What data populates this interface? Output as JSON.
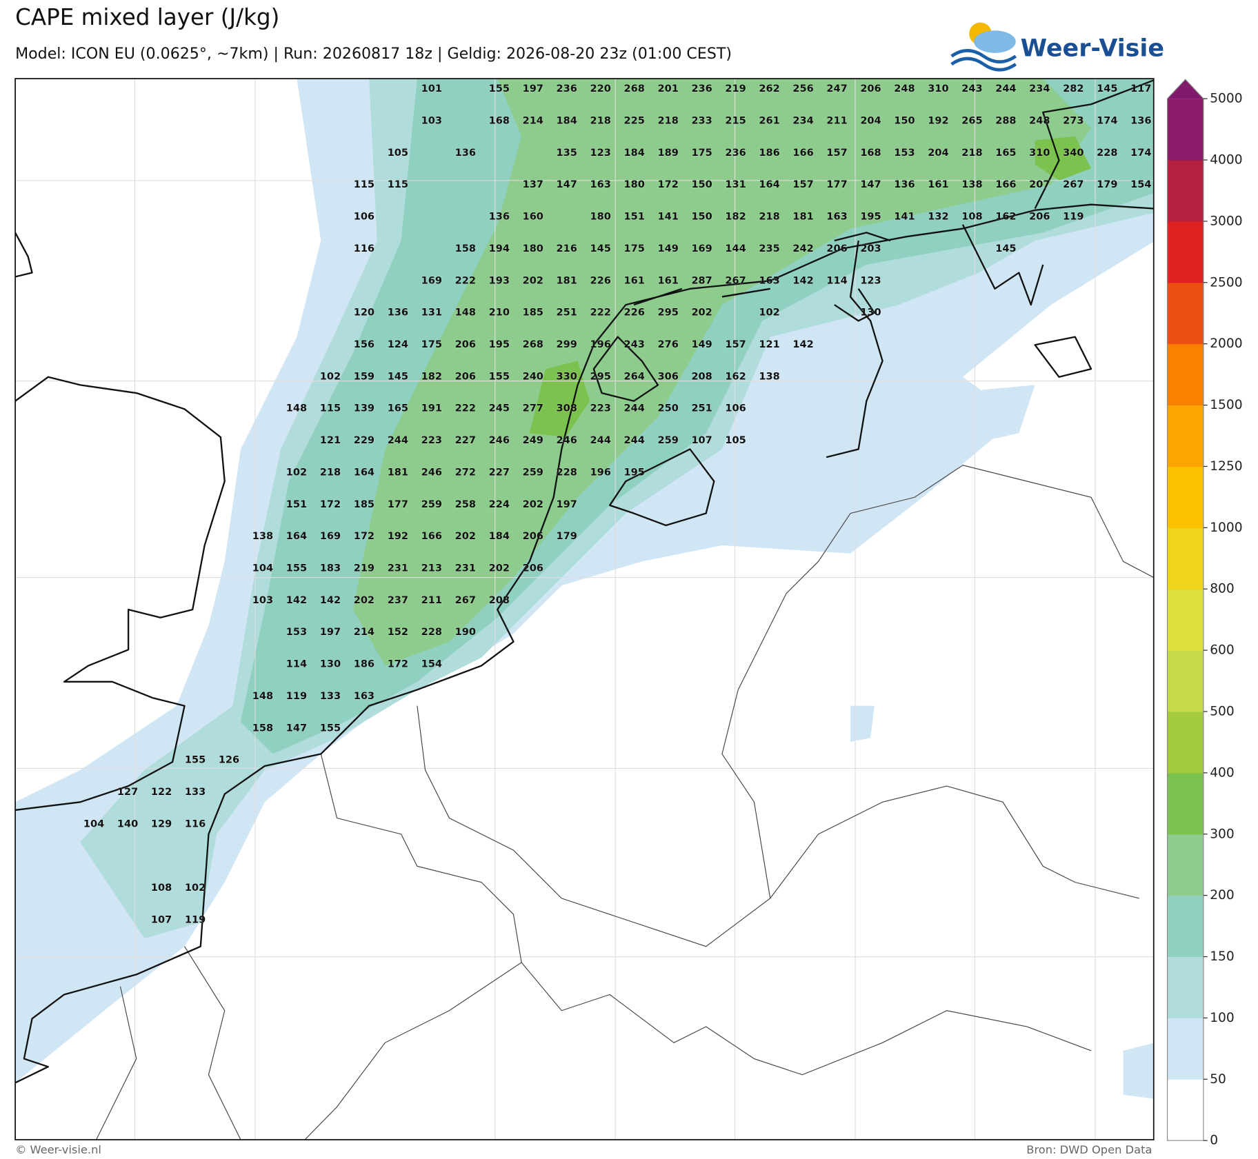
{
  "header": {
    "title": "CAPE mixed layer (J/kg)",
    "subtitle": "Model: ICON EU (0.0625°, ~7km)  |  Run: 20260817 18z  |  Geldig: 2026-08-20 23z (01:00 CEST)"
  },
  "logo": "Weer-Visie",
  "map": {
    "grid": [
      [
        null,
        null,
        null,
        null,
        null,
        null,
        null,
        null,
        null,
        null,
        101,
        null,
        155,
        197,
        236,
        220,
        268,
        201,
        236,
        219,
        262,
        256,
        247,
        206,
        248,
        310,
        243,
        244,
        234,
        282,
        145,
        117
      ],
      [
        null,
        null,
        null,
        null,
        null,
        null,
        null,
        null,
        null,
        null,
        103,
        null,
        168,
        214,
        184,
        218,
        225,
        218,
        233,
        215,
        261,
        234,
        211,
        204,
        150,
        192,
        265,
        288,
        248,
        273,
        174,
        136
      ],
      [
        null,
        null,
        null,
        null,
        null,
        null,
        null,
        null,
        null,
        105,
        null,
        136,
        null,
        null,
        135,
        123,
        184,
        189,
        175,
        236,
        186,
        166,
        157,
        168,
        153,
        204,
        218,
        165,
        310,
        340,
        228,
        174
      ],
      [
        null,
        null,
        null,
        null,
        null,
        null,
        null,
        null,
        115,
        115,
        null,
        null,
        null,
        137,
        147,
        163,
        180,
        172,
        150,
        131,
        164,
        157,
        177,
        147,
        136,
        161,
        138,
        166,
        207,
        267,
        179,
        154
      ],
      [
        null,
        null,
        null,
        null,
        null,
        null,
        null,
        null,
        106,
        null,
        null,
        null,
        136,
        160,
        null,
        180,
        151,
        141,
        150,
        182,
        218,
        181,
        163,
        195,
        141,
        132,
        108,
        162,
        206,
        119,
        null,
        null
      ],
      [
        null,
        null,
        null,
        null,
        null,
        null,
        null,
        null,
        116,
        null,
        null,
        158,
        194,
        180,
        216,
        145,
        175,
        149,
        169,
        144,
        235,
        242,
        206,
        203,
        null,
        null,
        null,
        145,
        null,
        null,
        null,
        null
      ],
      [
        null,
        null,
        null,
        null,
        null,
        null,
        null,
        null,
        null,
        null,
        169,
        222,
        193,
        202,
        181,
        226,
        161,
        161,
        287,
        267,
        163,
        142,
        114,
        123,
        null,
        null,
        null,
        null,
        null,
        null,
        null,
        null
      ],
      [
        null,
        null,
        null,
        null,
        null,
        null,
        null,
        null,
        120,
        136,
        131,
        148,
        210,
        185,
        251,
        222,
        226,
        295,
        202,
        null,
        102,
        null,
        null,
        130,
        null,
        null,
        null,
        null,
        null,
        null,
        null,
        null
      ],
      [
        null,
        null,
        null,
        null,
        null,
        null,
        null,
        null,
        156,
        124,
        175,
        206,
        195,
        268,
        299,
        196,
        243,
        276,
        149,
        157,
        121,
        142,
        null,
        null,
        null,
        null,
        null,
        null,
        null,
        null,
        null,
        null
      ],
      [
        null,
        null,
        null,
        null,
        null,
        null,
        null,
        102,
        159,
        145,
        182,
        206,
        155,
        240,
        330,
        295,
        264,
        306,
        208,
        162,
        138,
        null,
        null,
        null,
        null,
        null,
        null,
        null,
        null,
        null,
        null,
        null
      ],
      [
        null,
        null,
        null,
        null,
        null,
        null,
        148,
        115,
        139,
        165,
        191,
        222,
        245,
        277,
        308,
        223,
        244,
        250,
        251,
        106,
        null,
        null,
        null,
        null,
        null,
        null,
        null,
        null,
        null,
        null,
        null,
        null
      ],
      [
        null,
        null,
        null,
        null,
        null,
        null,
        null,
        121,
        229,
        244,
        223,
        227,
        246,
        249,
        246,
        244,
        244,
        259,
        107,
        105,
        null,
        null,
        null,
        null,
        null,
        null,
        null,
        null,
        null,
        null,
        null,
        null
      ],
      [
        null,
        null,
        null,
        null,
        null,
        null,
        102,
        218,
        164,
        181,
        246,
        272,
        227,
        259,
        228,
        196,
        195,
        null,
        null,
        null,
        null,
        null,
        null,
        null,
        null,
        null,
        null,
        null,
        null,
        null,
        null,
        null
      ],
      [
        null,
        null,
        null,
        null,
        null,
        null,
        151,
        172,
        185,
        177,
        259,
        258,
        224,
        202,
        197,
        null,
        null,
        null,
        null,
        null,
        null,
        null,
        null,
        null,
        null,
        null,
        null,
        null,
        null,
        null,
        null,
        null
      ],
      [
        null,
        null,
        null,
        null,
        null,
        138,
        164,
        169,
        172,
        192,
        166,
        202,
        184,
        206,
        179,
        null,
        null,
        null,
        null,
        null,
        null,
        null,
        null,
        null,
        null,
        null,
        null,
        null,
        null,
        null,
        null,
        null
      ],
      [
        null,
        null,
        null,
        null,
        null,
        104,
        155,
        183,
        219,
        231,
        213,
        231,
        202,
        206,
        null,
        null,
        null,
        null,
        null,
        null,
        null,
        null,
        null,
        null,
        null,
        null,
        null,
        null,
        null,
        null,
        null,
        null
      ],
      [
        null,
        null,
        null,
        null,
        null,
        103,
        142,
        142,
        202,
        237,
        211,
        267,
        208,
        null,
        null,
        null,
        null,
        null,
        null,
        null,
        null,
        null,
        null,
        null,
        null,
        null,
        null,
        null,
        null,
        null,
        null,
        null
      ],
      [
        null,
        null,
        null,
        null,
        null,
        null,
        153,
        197,
        214,
        152,
        228,
        190,
        null,
        null,
        null,
        null,
        null,
        null,
        null,
        null,
        null,
        null,
        null,
        null,
        null,
        null,
        null,
        null,
        null,
        null,
        null,
        null
      ],
      [
        null,
        null,
        null,
        null,
        null,
        null,
        114,
        130,
        186,
        172,
        154,
        null,
        null,
        null,
        null,
        null,
        null,
        null,
        null,
        null,
        null,
        null,
        null,
        null,
        null,
        null,
        null,
        null,
        null,
        null,
        null,
        null
      ],
      [
        null,
        null,
        null,
        null,
        null,
        148,
        119,
        133,
        163,
        null,
        null,
        null,
        null,
        null,
        null,
        null,
        null,
        null,
        null,
        null,
        null,
        null,
        null,
        null,
        null,
        null,
        null,
        null,
        null,
        null,
        null,
        null
      ],
      [
        null,
        null,
        null,
        null,
        null,
        158,
        147,
        155,
        null,
        null,
        null,
        null,
        null,
        null,
        null,
        null,
        null,
        null,
        null,
        null,
        null,
        null,
        null,
        null,
        null,
        null,
        null,
        null,
        null,
        null,
        null,
        null
      ],
      [
        null,
        null,
        null,
        155,
        126,
        null,
        null,
        null,
        null,
        null,
        null,
        null,
        null,
        null,
        null,
        null,
        null,
        null,
        null,
        null,
        null,
        null,
        null,
        null,
        null,
        null,
        null,
        null,
        null,
        null,
        null,
        null
      ],
      [
        null,
        127,
        122,
        133,
        null,
        null,
        null,
        null,
        null,
        null,
        null,
        null,
        null,
        null,
        null,
        null,
        null,
        null,
        null,
        null,
        null,
        null,
        null,
        null,
        null,
        null,
        null,
        null,
        null,
        null,
        null,
        null
      ],
      [
        104,
        140,
        129,
        116,
        null,
        null,
        null,
        null,
        null,
        null,
        null,
        null,
        null,
        null,
        null,
        null,
        null,
        null,
        null,
        null,
        null,
        null,
        null,
        null,
        null,
        null,
        null,
        null,
        null,
        null,
        null,
        null
      ],
      [
        null,
        null,
        null,
        null,
        null,
        null,
        null,
        null,
        null,
        null,
        null,
        null,
        null,
        null,
        null,
        null,
        null,
        null,
        null,
        null,
        null,
        null,
        null,
        null,
        null,
        null,
        null,
        null,
        null,
        null,
        null,
        null
      ],
      [
        null,
        null,
        108,
        102,
        null,
        null,
        null,
        null,
        null,
        null,
        null,
        null,
        null,
        null,
        null,
        null,
        null,
        null,
        null,
        null,
        null,
        null,
        null,
        null,
        null,
        null,
        null,
        null,
        null,
        null,
        null,
        null
      ],
      [
        null,
        null,
        107,
        119,
        null,
        null,
        null,
        null,
        null,
        null,
        null,
        null,
        null,
        null,
        null,
        null,
        null,
        null,
        null,
        null,
        null,
        null,
        null,
        null,
        null,
        null,
        null,
        null,
        null,
        null,
        null,
        null
      ]
    ]
  },
  "colorbar": {
    "ticks": [
      0,
      50,
      100,
      150,
      200,
      300,
      400,
      500,
      600,
      800,
      1000,
      1250,
      1500,
      2000,
      2500,
      3000,
      4000,
      5000
    ],
    "colors": [
      "#ffffff",
      "#d1e6f5",
      "#b0dcdc",
      "#90d0c0",
      "#8dcc8c",
      "#7cc24e",
      "#a2cb3e",
      "#c7d948",
      "#dfdf3e",
      "#f1d51a",
      "#fbc200",
      "#fca500",
      "#f98100",
      "#ee5012",
      "#e02121",
      "#b4203f",
      "#8b1a6a"
    ],
    "extend_color": "#801a6c"
  },
  "footer": {
    "left": "© Weer-visie.nl",
    "right": "Bron: DWD Open Data"
  }
}
